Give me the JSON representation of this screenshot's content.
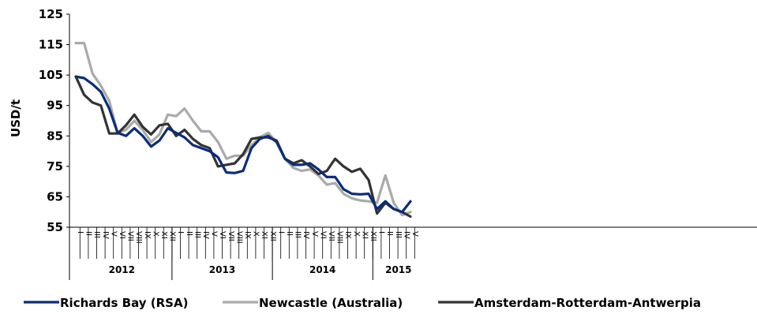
{
  "chart_data": {
    "type": "line",
    "ylabel": "USD/t",
    "ylim": [
      55,
      125
    ],
    "yticks": [
      55,
      65,
      75,
      85,
      95,
      105,
      115,
      125
    ],
    "grid": false,
    "legend_position": "bottom",
    "months": [
      "I",
      "II",
      "III",
      "IV",
      "V",
      "VI",
      "VII",
      "VIII",
      "IX",
      "X",
      "XI",
      "XII"
    ],
    "years": [
      {
        "label": "2012",
        "months": 12
      },
      {
        "label": "2013",
        "months": 12
      },
      {
        "label": "2014",
        "months": 12
      },
      {
        "label": "2015",
        "months": 5
      }
    ],
    "series": [
      {
        "name": "Richards Bay (RSA)",
        "color": "#0a2d7a",
        "values": [
          104.5,
          104,
          102,
          99.5,
          94,
          86,
          85,
          87.5,
          85,
          81.5,
          83.5,
          87.5,
          86,
          84.5,
          82,
          81,
          80,
          78,
          73,
          72.8,
          73.5,
          81,
          84,
          85,
          83,
          77.5,
          75.5,
          75.5,
          76,
          74,
          71.5,
          71.5,
          67.5,
          66,
          65.8,
          66,
          61,
          63.5,
          61,
          60,
          63.5
        ]
      },
      {
        "name": "Newcastle (Australia)",
        "color": "#aaaaaa",
        "values": [
          115.5,
          115.5,
          105.5,
          101.5,
          96.5,
          86,
          87,
          90,
          87,
          83,
          85.5,
          92,
          91.5,
          94,
          90,
          86.5,
          86.5,
          83,
          77.5,
          78.5,
          78.5,
          82,
          84.5,
          86,
          83,
          77.5,
          74.5,
          73.5,
          74,
          72,
          69,
          69.5,
          66,
          64.5,
          63.8,
          63.5,
          63,
          72,
          63,
          59,
          60
        ]
      },
      {
        "name": "Amsterdam-Rotterdam-Antwerpia",
        "color": "#333333",
        "values": [
          104.5,
          98.5,
          96,
          95,
          85.8,
          85.8,
          88.5,
          92,
          88,
          85.5,
          88.5,
          89,
          85,
          87,
          84,
          82,
          81,
          75,
          75.5,
          76,
          79,
          84,
          84.5,
          84.5,
          83.5,
          77.5,
          76,
          77,
          75,
          72.5,
          73.5,
          77.5,
          75,
          73.2,
          74.2,
          70.5,
          59.5,
          63,
          61,
          60,
          58.5
        ]
      }
    ]
  }
}
